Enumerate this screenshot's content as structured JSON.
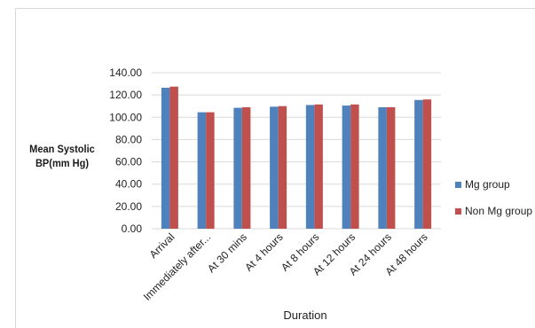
{
  "chart_data": {
    "type": "bar",
    "categories": [
      "Arrival",
      "Immediately after...",
      "At 30 mins",
      "At 4 hours",
      "At 8 hours",
      "At 12 hours",
      "At 24 hours",
      "At 48 hours"
    ],
    "series": [
      {
        "name": "Mg group",
        "values": [
          126.5,
          104.5,
          108.5,
          109.5,
          111,
          110.5,
          109,
          115.5
        ]
      },
      {
        "name": "Non Mg group",
        "values": [
          127.5,
          104.5,
          109,
          110,
          111.5,
          111.5,
          109,
          116
        ]
      }
    ],
    "title": "",
    "xlabel": "Duration",
    "ylabel": "Mean Systolic BP(mm Hg)",
    "ylim": [
      0,
      140
    ],
    "yticks": [
      0,
      20,
      40,
      60,
      80,
      100,
      120,
      140
    ],
    "ytick_labels": [
      "0.00",
      "20.00",
      "40.00",
      "60.00",
      "80.00",
      "100.00",
      "120.00",
      "140.00"
    ],
    "grid": true,
    "legend_position": "right",
    "colors": [
      "#4f81bd",
      "#c0504d"
    ]
  }
}
